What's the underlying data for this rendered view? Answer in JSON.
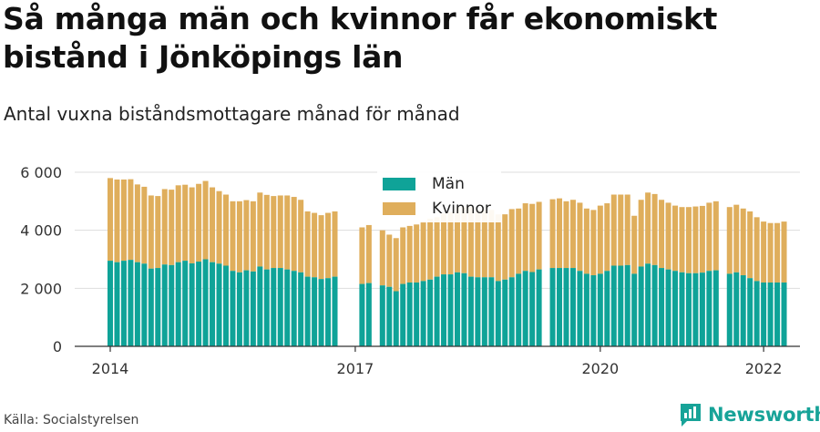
{
  "title": "Så många män och kvinnor får ekonomiskt bistånd i Jönköpings län",
  "subtitle": "Antal vuxna biståndsmottagare månad för månad",
  "source": "Källa: Socialstyrelsen",
  "brand": {
    "name": "Newsworthy",
    "icon": "newsworthy-logo-icon"
  },
  "colors": {
    "men": "#0fa398",
    "women": "#dfae5c",
    "grid": "#dddddd",
    "axis": "#333333"
  },
  "chart_data": {
    "type": "bar",
    "stacked": true,
    "title": "Så många män och kvinnor får ekonomiskt bistånd i Jönköpings län",
    "subtitle": "Antal vuxna biståndsmottagare månad för månad",
    "xlabel": "",
    "ylabel": "",
    "ylim": [
      0,
      6000
    ],
    "yticks": [
      0,
      2000,
      4000,
      6000
    ],
    "ytick_labels": [
      "0",
      "2 000",
      "4 000",
      "6 000"
    ],
    "xtick_labels": [
      "2014",
      "2017",
      "2020",
      "2022"
    ],
    "grid": true,
    "legend_position": "top-center",
    "start": "2014-01",
    "series": [
      {
        "name": "Män",
        "color": "#0fa398",
        "values": [
          2950,
          2900,
          2950,
          2980,
          2900,
          2850,
          2680,
          2700,
          2820,
          2800,
          2900,
          2950,
          2860,
          2920,
          3000,
          2900,
          2850,
          2780,
          2600,
          2550,
          2620,
          2580,
          2750,
          2650,
          2700,
          2700,
          2650,
          2600,
          2550,
          2400,
          2380,
          2320,
          2350,
          2400,
          null,
          null,
          null,
          2150,
          2180,
          null,
          2100,
          2050,
          1900,
          2150,
          2200,
          2200,
          2250,
          2300,
          2400,
          2480,
          2480,
          2550,
          2520,
          2400,
          2380,
          2380,
          2380,
          2250,
          2300,
          2380,
          2500,
          2600,
          2560,
          2650,
          null,
          2700,
          2700,
          2700,
          2700,
          2600,
          2500,
          2450,
          2500,
          2600,
          2780,
          2780,
          2800,
          2500,
          2750,
          2850,
          2800,
          2700,
          2650,
          2600,
          2550,
          2520,
          2520,
          2540,
          2600,
          2620,
          null,
          2500,
          2550,
          2450,
          2350,
          2250,
          2200,
          2200,
          2200,
          2200
        ]
      },
      {
        "name": "Kvinnor",
        "color": "#dfae5c",
        "values": [
          2850,
          2850,
          2800,
          2780,
          2680,
          2650,
          2520,
          2480,
          2600,
          2600,
          2650,
          2620,
          2620,
          2680,
          2700,
          2580,
          2500,
          2450,
          2400,
          2450,
          2420,
          2420,
          2550,
          2570,
          2480,
          2500,
          2550,
          2550,
          2500,
          2250,
          2220,
          2200,
          2250,
          2250,
          null,
          null,
          null,
          1950,
          2000,
          null,
          1900,
          1800,
          1830,
          1950,
          1950,
          2000,
          2020,
          2100,
          2050,
          2100,
          2150,
          2250,
          2300,
          2400,
          2330,
          2330,
          2320,
          2300,
          2250,
          2350,
          2250,
          2330,
          2350,
          2330,
          null,
          2370,
          2400,
          2300,
          2350,
          2350,
          2250,
          2250,
          2350,
          2330,
          2450,
          2450,
          2430,
          2000,
          2300,
          2450,
          2450,
          2350,
          2300,
          2250,
          2250,
          2280,
          2300,
          2300,
          2350,
          2380,
          null,
          2300,
          2330,
          2300,
          2300,
          2200,
          2100,
          2050,
          2050,
          2100
        ]
      }
    ]
  }
}
